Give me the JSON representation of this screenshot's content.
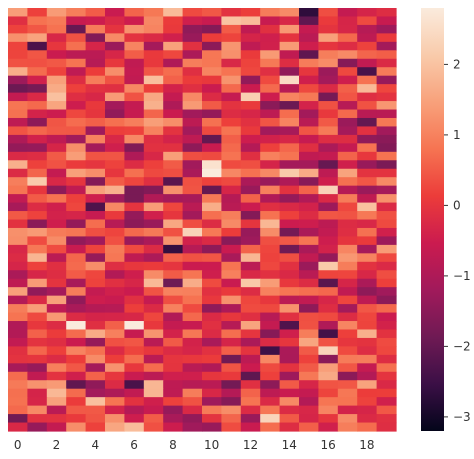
{
  "chart_data": {
    "type": "heatmap",
    "title": "",
    "xlabel": "",
    "ylabel": "",
    "n_cols": 20,
    "n_rows": 50,
    "x_ticks": [
      "0",
      "2",
      "4",
      "6",
      "8",
      "10",
      "12",
      "14",
      "16",
      "18"
    ],
    "x_tick_positions": [
      0,
      2,
      4,
      6,
      8,
      10,
      12,
      14,
      16,
      18
    ],
    "colorbar": {
      "vmin": -3.2,
      "vmax": 2.8,
      "ticks": [
        2,
        1,
        0,
        -1,
        -2,
        -3
      ],
      "tick_labels": [
        "2",
        "1",
        "0",
        "−1",
        "−2",
        "−3"
      ]
    },
    "colormap": [
      "#03051a",
      "#3b0f46",
      "#6f1a54",
      "#a11a5b",
      "#cb1b4f",
      "#ec3c3a",
      "#f67452",
      "#f8a17b",
      "#f9cbab",
      "#faebdd"
    ],
    "values": "generated",
    "seed": 42
  }
}
